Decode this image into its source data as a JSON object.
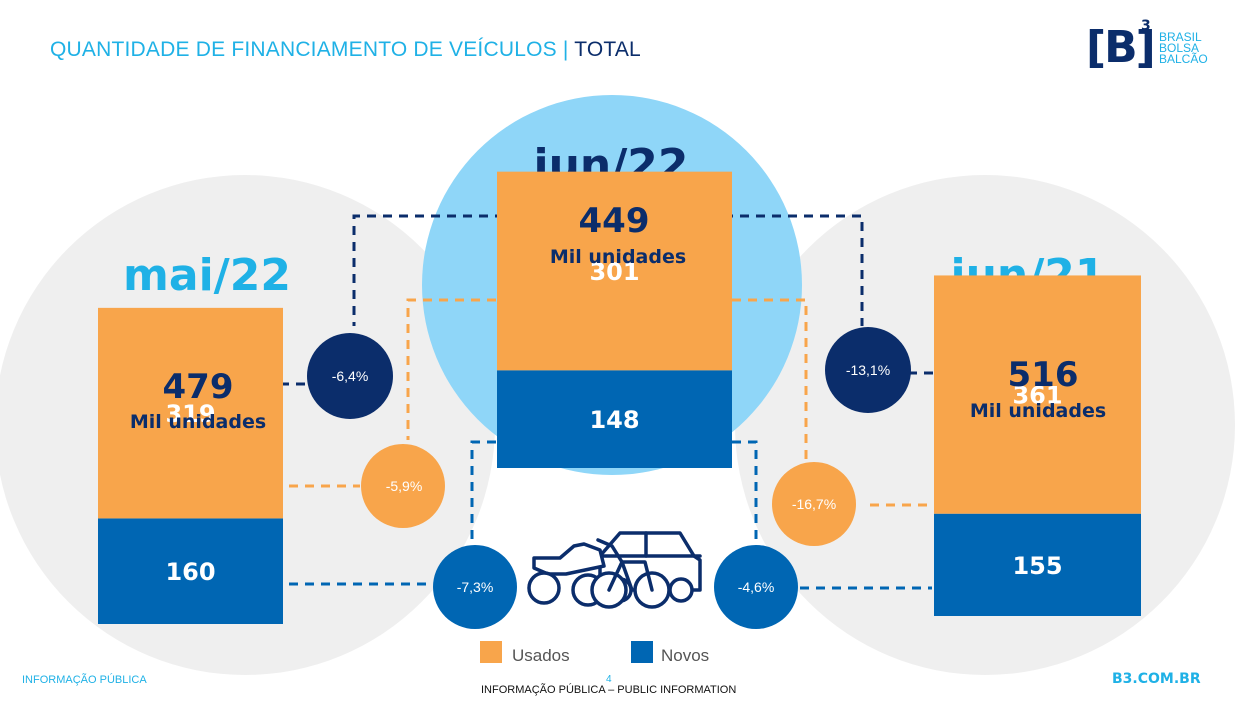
{
  "header": {
    "title_main": "QUANTIDADE DE FINANCIAMENTO DE VEÍCULOS",
    "title_sep": "|",
    "title_total": "TOTAL"
  },
  "logo": {
    "mark": "[B]",
    "superscript": "3",
    "line1": "BRASIL",
    "line2": "BOLSA",
    "line3": "BALCÃO"
  },
  "chart_data": {
    "type": "bar",
    "stacked": true,
    "categories": [
      "mai/22",
      "jun/22",
      "jun/21"
    ],
    "series": [
      {
        "name": "Usados",
        "values": [
          319,
          301,
          361
        ],
        "color": "#f8a54b"
      },
      {
        "name": "Novos",
        "values": [
          160,
          148,
          155
        ],
        "color": "#0066b3"
      }
    ],
    "totals": [
      "479",
      "449",
      "516"
    ],
    "unit_label": "Mil unidades",
    "total_variations": [
      "-6,4%",
      "-13,1%"
    ],
    "usados_variations": [
      "-5,9%",
      "-16,7%"
    ],
    "novos_variations": [
      "-7,3%",
      "-4,6%"
    ],
    "legend_position": "bottom-center",
    "colors": {
      "usados": "#f8a54b",
      "novos": "#0066b3",
      "total_circle": "#0b2d6b",
      "highlight_circle": "#8fd6f8",
      "side_circle": "#efefef",
      "category_text_side": "#1fb1e6",
      "category_text_center": "#0b2d6b"
    },
    "icon": "vehicles-icon"
  },
  "footer": {
    "left": "INFORMAÇÃO PÚBLICA",
    "page": "4",
    "center": "INFORMAÇÃO PÚBLICA – PUBLIC INFORMATION",
    "right": "B3.COM.BR"
  }
}
